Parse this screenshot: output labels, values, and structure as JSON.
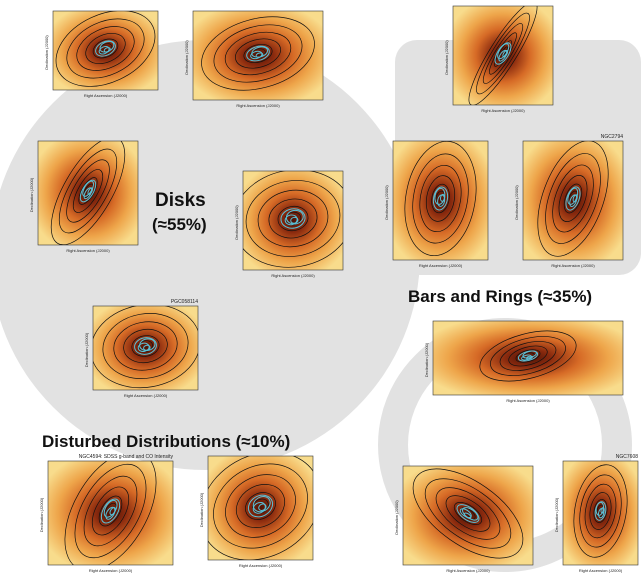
{
  "labels": {
    "disks": "Disks",
    "disks_pct": "(≈55%)",
    "bars": "Bars and Rings (≈35%)",
    "disturbed": "Disturbed Distributions (≈10%)"
  },
  "axes": {
    "x": "Right Ascension (J2000)",
    "y": "Declination (J2000)"
  },
  "panel_titles": [
    "NGC2794",
    "PGC058114",
    "NGC4594: SDSS g-band and CO Intensity",
    "NGC7608"
  ]
}
